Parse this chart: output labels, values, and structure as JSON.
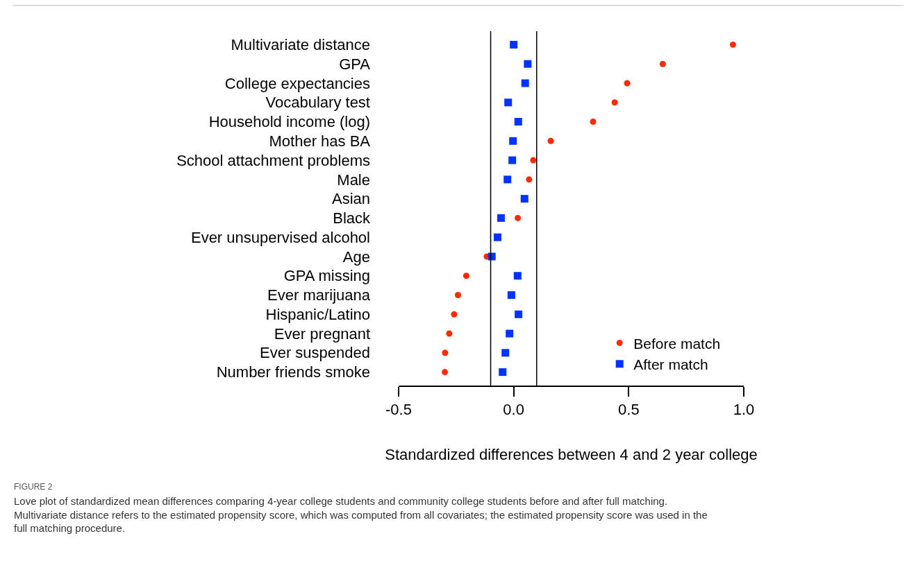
{
  "chart_data": {
    "type": "scatter",
    "categories": [
      "Multivariate distance",
      "GPA",
      "College expectancies",
      "Vocabulary test",
      "Household income (log)",
      "Mother has BA",
      "School attachment problems",
      "Male",
      "Asian",
      "Black",
      "Ever unsupervised alcohol",
      "Age",
      "GPA missing",
      "Ever marijuana",
      "Hispanic/Latino",
      "Ever pregnant",
      "Ever suspended",
      "Number friends smoke"
    ],
    "orientation": "horizontal",
    "series": [
      {
        "name": "Before match",
        "color": "#ff2a00",
        "marker": "circle",
        "values": [
          0.953,
          0.648,
          0.493,
          0.439,
          0.345,
          0.161,
          0.085,
          0.067,
          null,
          0.018,
          null,
          -0.117,
          -0.206,
          -0.242,
          -0.259,
          -0.28,
          -0.298,
          -0.299
        ]
      },
      {
        "name": "After match",
        "color": "#0033ff",
        "marker": "square",
        "values": [
          0.0,
          0.061,
          0.05,
          -0.024,
          0.02,
          -0.003,
          -0.006,
          -0.027,
          0.047,
          -0.055,
          -0.07,
          -0.095,
          0.017,
          -0.01,
          0.021,
          -0.018,
          -0.036,
          -0.048
        ]
      }
    ],
    "xlim": [
      -0.5,
      1.0
    ],
    "xticks": [
      -0.5,
      {
        "value": 0.0,
        "label": "0.0"
      },
      0.5,
      {
        "value": 1.0,
        "label": "1.0"
      }
    ],
    "xlabel": "Standardized differences between 4 and 2 year college",
    "ref_lines": [
      {
        "axis": "x",
        "value": -0.1,
        "color": "#000000"
      },
      {
        "axis": "x",
        "value": 0.1,
        "color": "#000000"
      }
    ],
    "legend": "bottom right",
    "annotations": [
      "FIGURE 2",
      "Love plot of standardized mean differences comparing 4-year college students and community college students before and after full matching. Multivariate distance refers to the estimated propensity score, which was computed from all covariates; the estimated propensity score was used in the full matching procedure."
    ]
  }
}
